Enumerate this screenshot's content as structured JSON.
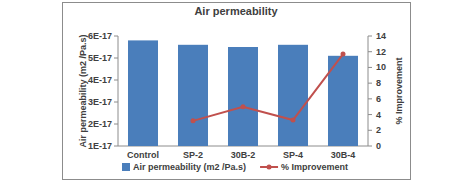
{
  "chart_data": {
    "type": "bar",
    "title": "Air permeability",
    "y_label": "Air permeability (m2 /Pa.s)",
    "y2_label": "% Improvement",
    "categories": [
      "Control",
      "SP-2",
      "30B-2",
      "SP-4",
      "30B-4"
    ],
    "series": [
      {
        "name": "Air permeability (m2 /Pa.s)",
        "type": "bar",
        "color": "#4a7ebb",
        "values": [
          5.8e-17,
          5.6e-17,
          5.5e-17,
          5.6e-17,
          5.1e-17
        ]
      },
      {
        "name": "% Improvement",
        "type": "line",
        "axis": "y2",
        "color": "#c0504d",
        "marker": "circle",
        "values": [
          null,
          3.2,
          5,
          3.3,
          11.7
        ]
      }
    ],
    "ylim": [
      1e-17,
      6e-17
    ],
    "yticks": [
      {
        "value": 1e-17,
        "label": "1E-17"
      },
      {
        "value": 2e-17,
        "label": "2E-17"
      },
      {
        "value": 3e-17,
        "label": "3E-17"
      },
      {
        "value": 4e-17,
        "label": "4E-17"
      },
      {
        "value": 5e-17,
        "label": "5E-17"
      },
      {
        "value": 6e-17,
        "label": "6E-17"
      }
    ],
    "y2lim": [
      0,
      14
    ],
    "y2ticks": [
      0,
      2,
      4,
      6,
      8,
      10,
      12,
      14
    ],
    "grid": false,
    "legend": "bottom"
  }
}
